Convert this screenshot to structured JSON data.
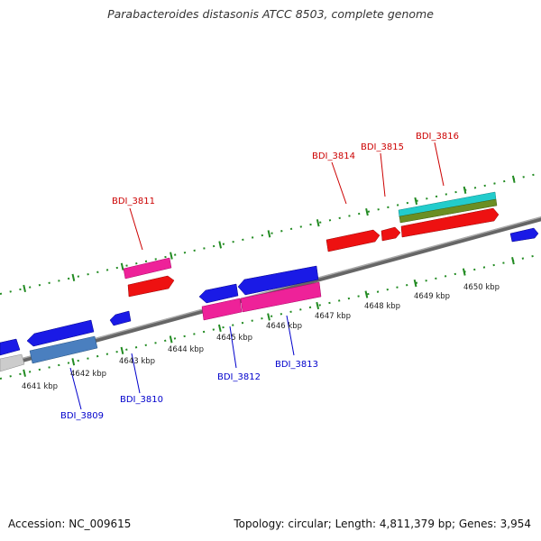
{
  "title": "Parabacteroides distasonis ATCC 8503, complete genome",
  "footer": {
    "accession": "Accession: NC_009615",
    "summary": "Topology: circular; Length: 4,811,379 bp; Genes: 3,954"
  },
  "colors": {
    "forward_blue": "#1a1ae6",
    "reverse_red": "#ee1111",
    "magenta": "#ee2299",
    "steel_blue": "#4a7fbf",
    "grey": "#cccccc",
    "cyan": "#22cccc",
    "olive": "#6b8e23",
    "backbone": "#888888",
    "ticks": "#228b22"
  },
  "scale_labels": [
    "4641 kbp",
    "4642 kbp",
    "4643 kbp",
    "4644 kbp",
    "4645 kbp",
    "4646 kbp",
    "4647 kbp",
    "4648 kbp",
    "4649 kbp",
    "4650 kbp"
  ],
  "top_labels": [
    "BDI_3811",
    "BDI_3814",
    "BDI_3815",
    "BDI_3816"
  ],
  "bottom_labels": [
    "BDI_3809",
    "BDI_3810",
    "BDI_3812",
    "BDI_3813"
  ]
}
